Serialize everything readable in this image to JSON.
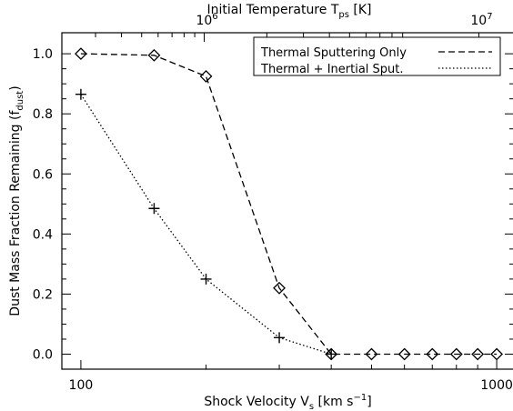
{
  "chart_data": {
    "type": "line",
    "xscale": "log",
    "xlim": [
      90,
      1100
    ],
    "ylim": [
      -0.05,
      1.07
    ],
    "xlabel": {
      "prefix": "Shock Velocity V",
      "sub": "s",
      "unit_open": " [km s",
      "sup": "−1",
      "unit_close": "]"
    },
    "ylabel": {
      "prefix": "Dust Mass Fraction Remaining (f",
      "sub": "dust",
      "suffix": ")"
    },
    "x_ticks": [
      {
        "value": 100,
        "label": "100"
      },
      {
        "value": 1000,
        "label": "1000"
      }
    ],
    "y_ticks": [
      {
        "value": 0.0,
        "label": "0.0"
      },
      {
        "value": 0.2,
        "label": "0.2"
      },
      {
        "value": 0.4,
        "label": "0.4"
      },
      {
        "value": 0.6,
        "label": "0.6"
      },
      {
        "value": 0.8,
        "label": "0.8"
      },
      {
        "value": 1.0,
        "label": "1.0"
      }
    ],
    "top_axis": {
      "label": {
        "prefix": "Initial Temperature T",
        "sub": "ps",
        "suffix": " [K]"
      },
      "ticks": [
        {
          "velocity": 198,
          "base": "10",
          "exp": "6"
        },
        {
          "velocity": 906,
          "base": "10",
          "exp": "7"
        }
      ]
    },
    "legend": {
      "position": "top-right"
    },
    "series": [
      {
        "name": "Thermal Sputtering Only",
        "style": "dashed",
        "marker": "diamond",
        "x": [
          100,
          150,
          200,
          300,
          400,
          500,
          600,
          700,
          800,
          900,
          1000
        ],
        "y": [
          1.0,
          0.995,
          0.925,
          0.22,
          0.0,
          0.0,
          0.0,
          0.0,
          0.0,
          0.0,
          0.0
        ]
      },
      {
        "name": "Thermal + Inertial Sput.",
        "style": "dotted",
        "marker": "plus",
        "x": [
          100,
          150,
          200,
          300,
          400
        ],
        "y": [
          0.865,
          0.485,
          0.25,
          0.055,
          0.0
        ]
      }
    ]
  }
}
